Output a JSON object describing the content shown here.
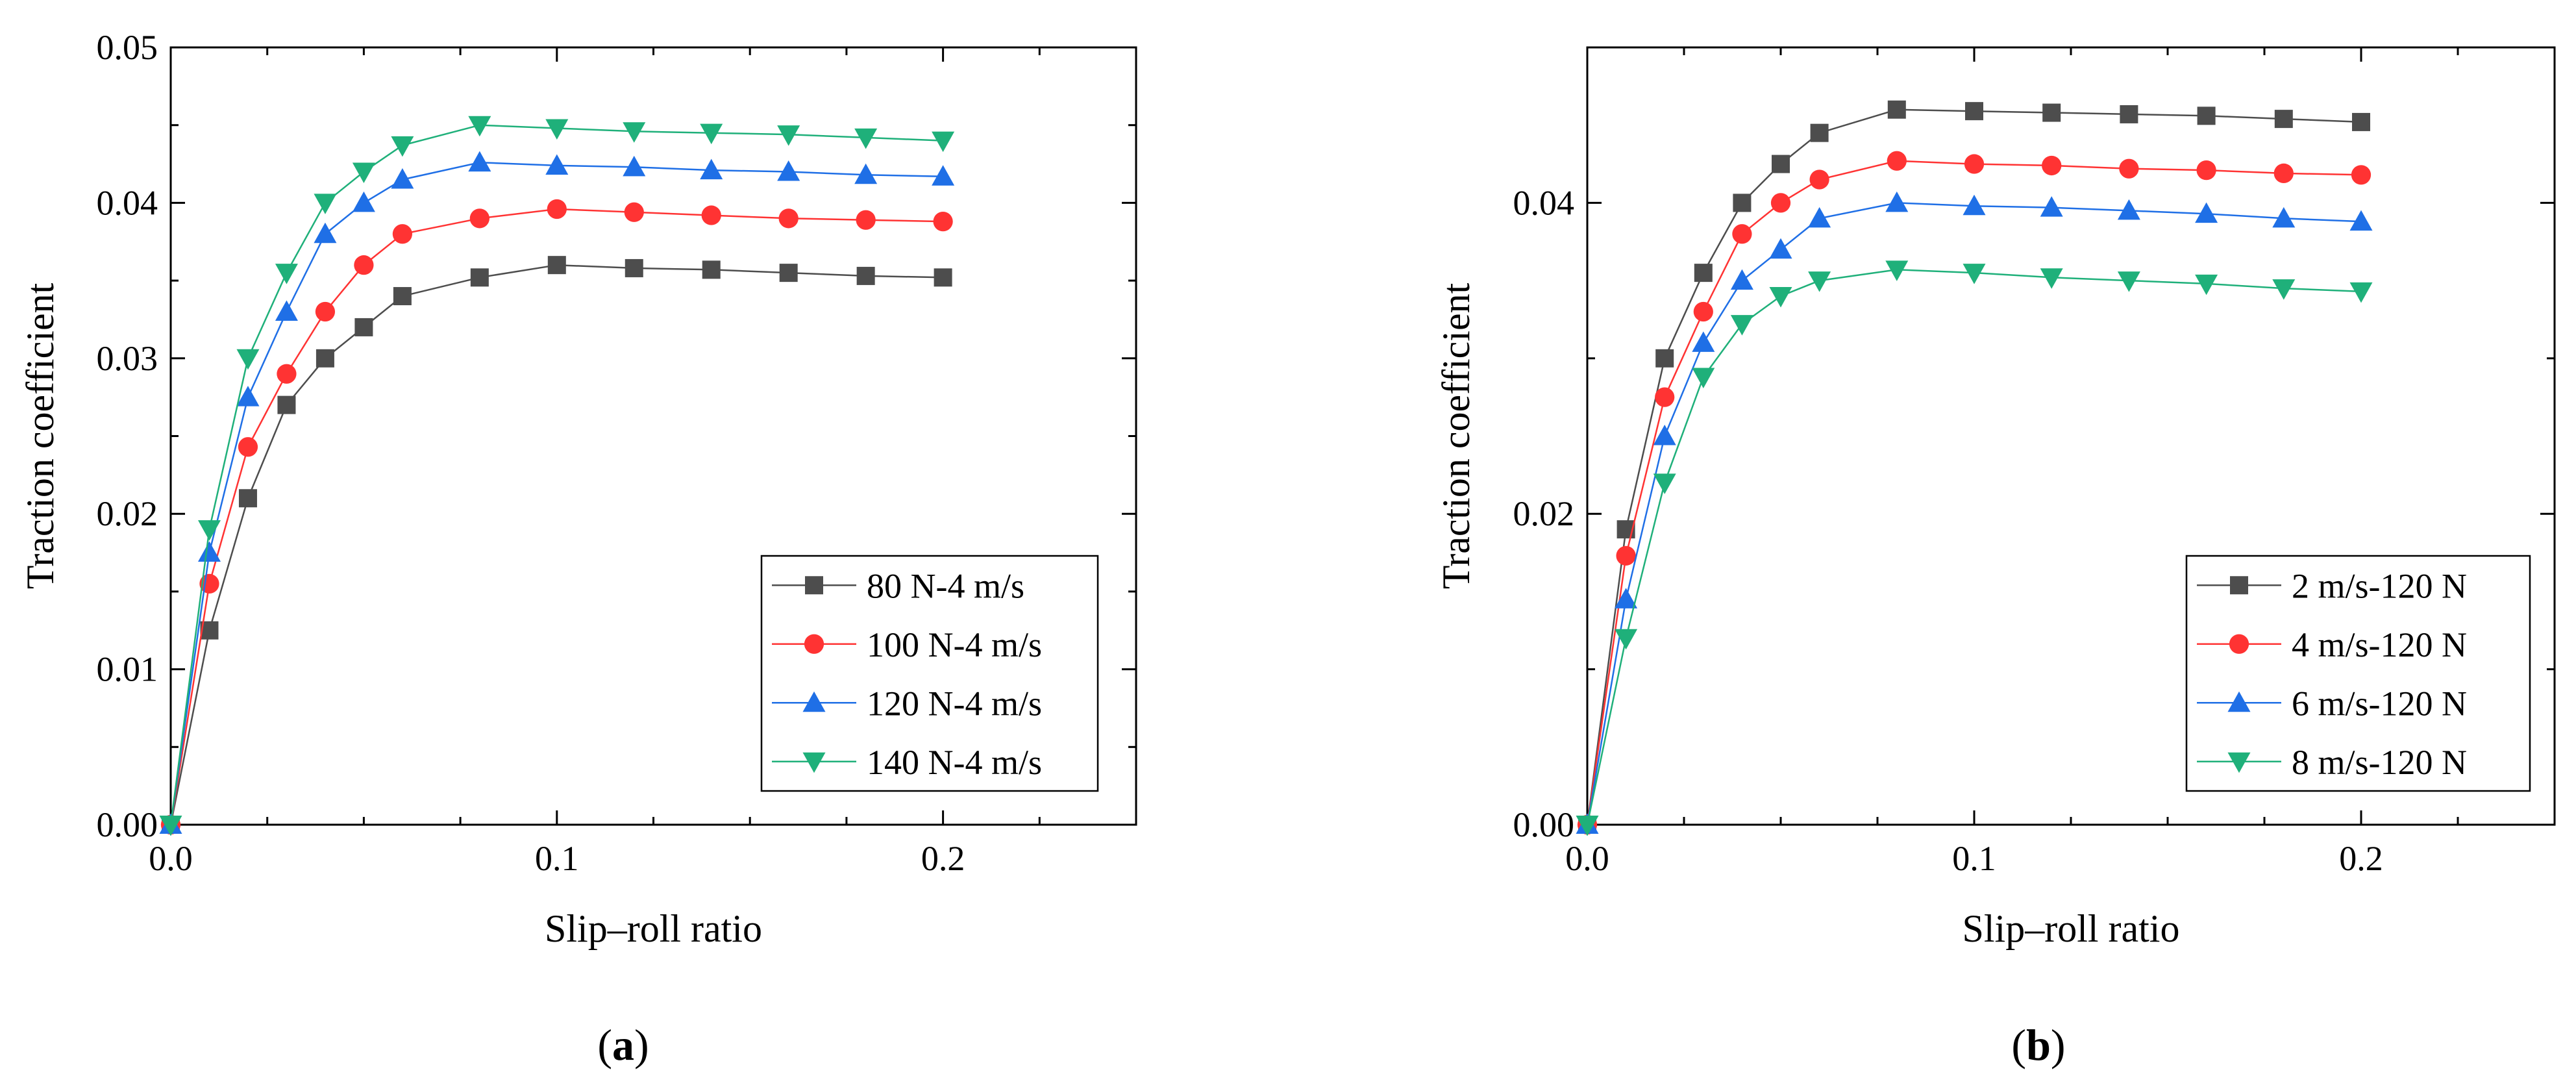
{
  "chart_data": [
    {
      "type": "line",
      "panel_label": "a",
      "xlabel": "Slip–roll ratio",
      "ylabel": "Traction coefficient",
      "xlim": [
        0,
        0.25
      ],
      "ylim": [
        0,
        0.05
      ],
      "xticks": [
        0,
        0.1,
        0.2
      ],
      "xtick_labels": [
        "0.0",
        "0.1",
        "0.2"
      ],
      "yticks": [
        0,
        0.01,
        0.02,
        0.03,
        0.04,
        0.05
      ],
      "ytick_labels": [
        "0.00",
        "0.01",
        "0.02",
        "0.03",
        "0.04",
        "0.05"
      ],
      "x": [
        0,
        0.01,
        0.02,
        0.03,
        0.04,
        0.05,
        0.06,
        0.08,
        0.1,
        0.12,
        0.14,
        0.16,
        0.18,
        0.2
      ],
      "legend_position": "bottom-right",
      "series": [
        {
          "name": "80 N-4 m/s",
          "color": "#4d4d4d",
          "marker": "square",
          "values": [
            0,
            0.0125,
            0.021,
            0.027,
            0.03,
            0.032,
            0.034,
            0.0352,
            0.036,
            0.0358,
            0.0357,
            0.0355,
            0.0353,
            0.0352
          ]
        },
        {
          "name": "100 N-4 m/s",
          "color": "#ff3333",
          "marker": "circle",
          "values": [
            0,
            0.0155,
            0.0243,
            0.029,
            0.033,
            0.036,
            0.038,
            0.039,
            0.0396,
            0.0394,
            0.0392,
            0.039,
            0.0389,
            0.0388
          ]
        },
        {
          "name": "120 N-4 m/s",
          "color": "#1f6fe6",
          "marker": "triangle-up",
          "values": [
            0,
            0.0175,
            0.0275,
            0.033,
            0.038,
            0.04,
            0.0415,
            0.0426,
            0.0424,
            0.0423,
            0.0421,
            0.042,
            0.0418,
            0.0417
          ]
        },
        {
          "name": "140 N-4 m/s",
          "color": "#1fb07a",
          "marker": "triangle-down",
          "values": [
            0,
            0.019,
            0.03,
            0.0355,
            0.04,
            0.042,
            0.0437,
            0.045,
            0.0448,
            0.0446,
            0.0445,
            0.0444,
            0.0442,
            0.044
          ]
        }
      ]
    },
    {
      "type": "line",
      "panel_label": "b",
      "xlabel": "Slip–roll ratio",
      "ylabel": "Traction coefficient",
      "xlim": [
        0,
        0.25
      ],
      "ylim": [
        0,
        0.05
      ],
      "xticks": [
        0,
        0.1,
        0.2
      ],
      "xtick_labels": [
        "0.0",
        "0.1",
        "0.2"
      ],
      "yticks": [
        0,
        0.02,
        0.04
      ],
      "ytick_labels": [
        "0.00",
        "0.02",
        "0.04"
      ],
      "x": [
        0,
        0.01,
        0.02,
        0.03,
        0.04,
        0.05,
        0.06,
        0.08,
        0.1,
        0.12,
        0.14,
        0.16,
        0.18,
        0.2
      ],
      "legend_position": "bottom-right",
      "series": [
        {
          "name": "2 m/s-120 N",
          "color": "#4d4d4d",
          "marker": "square",
          "values": [
            0,
            0.019,
            0.03,
            0.0355,
            0.04,
            0.0425,
            0.0445,
            0.046,
            0.0459,
            0.0458,
            0.0457,
            0.0456,
            0.0454,
            0.0452
          ]
        },
        {
          "name": "4 m/s-120 N",
          "color": "#ff3333",
          "marker": "circle",
          "values": [
            0,
            0.0173,
            0.0275,
            0.033,
            0.038,
            0.04,
            0.0415,
            0.0427,
            0.0425,
            0.0424,
            0.0422,
            0.0421,
            0.0419,
            0.0418
          ]
        },
        {
          "name": "6 m/s-120 N",
          "color": "#1f6fe6",
          "marker": "triangle-up",
          "values": [
            0,
            0.0145,
            0.025,
            0.031,
            0.035,
            0.037,
            0.039,
            0.04,
            0.0398,
            0.0397,
            0.0395,
            0.0393,
            0.039,
            0.0388
          ]
        },
        {
          "name": "8 m/s-120 N",
          "color": "#1fb07a",
          "marker": "triangle-down",
          "values": [
            0,
            0.012,
            0.022,
            0.0288,
            0.0322,
            0.034,
            0.035,
            0.0357,
            0.0355,
            0.0352,
            0.035,
            0.0348,
            0.0345,
            0.0343
          ]
        }
      ]
    }
  ]
}
